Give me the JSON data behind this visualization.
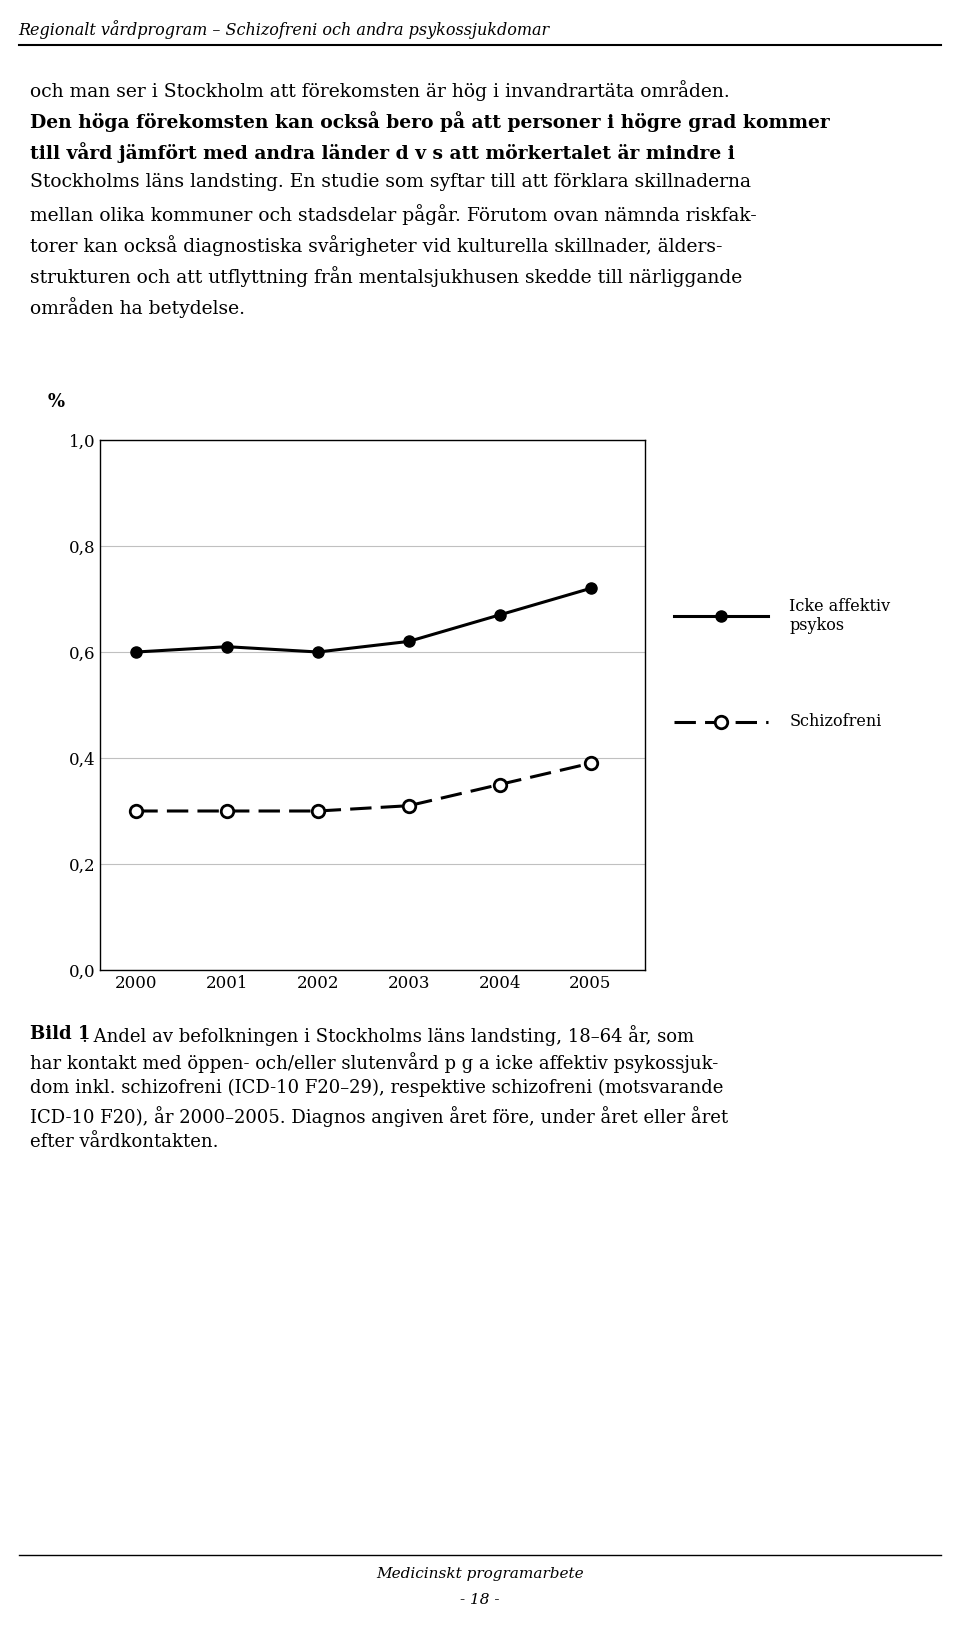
{
  "title_header": "Regionalt vårdprogram – Schizofreni och andra psykossjukdomar",
  "body_line0": "och man ser i Stockholm att förekomsten är hög i invandrartäta områden.",
  "body_line1": "Den höga förekomsten kan också bero på att personer i högre grad kommer",
  "body_line2": "till vård jämfört med andra länder d v s att mörkertalet är mindre i",
  "body_line3": "Stockholms läns landsting. En studie som syftar till att förklara skillnaderna",
  "body_line4": "mellan olika kommuner och stadsdelar pågår. Förutom ovan nämnda riskfak-",
  "body_line5": "torer kan också diagnostiska svårigheter vid kulturella skillnader, älders-",
  "body_line6": "strukturen och att utflyttning från mentalsjukhusen skedde till närliggande",
  "body_line7": "områden ha betydelse.",
  "ylabel": "%",
  "years": [
    2000,
    2001,
    2002,
    2003,
    2004,
    2005
  ],
  "icke_affektiv": [
    0.6,
    0.61,
    0.6,
    0.62,
    0.67,
    0.72
  ],
  "schizofreni": [
    0.3,
    0.3,
    0.3,
    0.31,
    0.35,
    0.39
  ],
  "ylim": [
    0.0,
    1.0
  ],
  "yticks": [
    0.0,
    0.2,
    0.4,
    0.6,
    0.8,
    1.0
  ],
  "ytick_labels": [
    "0,0",
    "0,2",
    "0,4",
    "0,6",
    "0,8",
    "1,0"
  ],
  "legend_icke": "Icke affektiv\npsykos",
  "legend_schizo": "Schizofreni",
  "caption_bold": "Bild 1",
  "caption_line0": ". Andel av befolkningen i Stockholms läns landsting, 18–64 år, som",
  "caption_line1": "har kontakt med öppen- och/eller slutenvård p g a icke affektiv psykossjuk-",
  "caption_line2": "dom inkl. schizofreni (ICD-10 F20–29), respektive schizofreni (motsvarande",
  "caption_line3": "ICD-10 F20), år 2000–2005. Diagnos angiven året före, under året eller året",
  "caption_line4": "efter vårdkontakten.",
  "footer_line1": "Medicinskt programarbete",
  "footer_line2": "- 18 -",
  "bg_color": "#ffffff"
}
